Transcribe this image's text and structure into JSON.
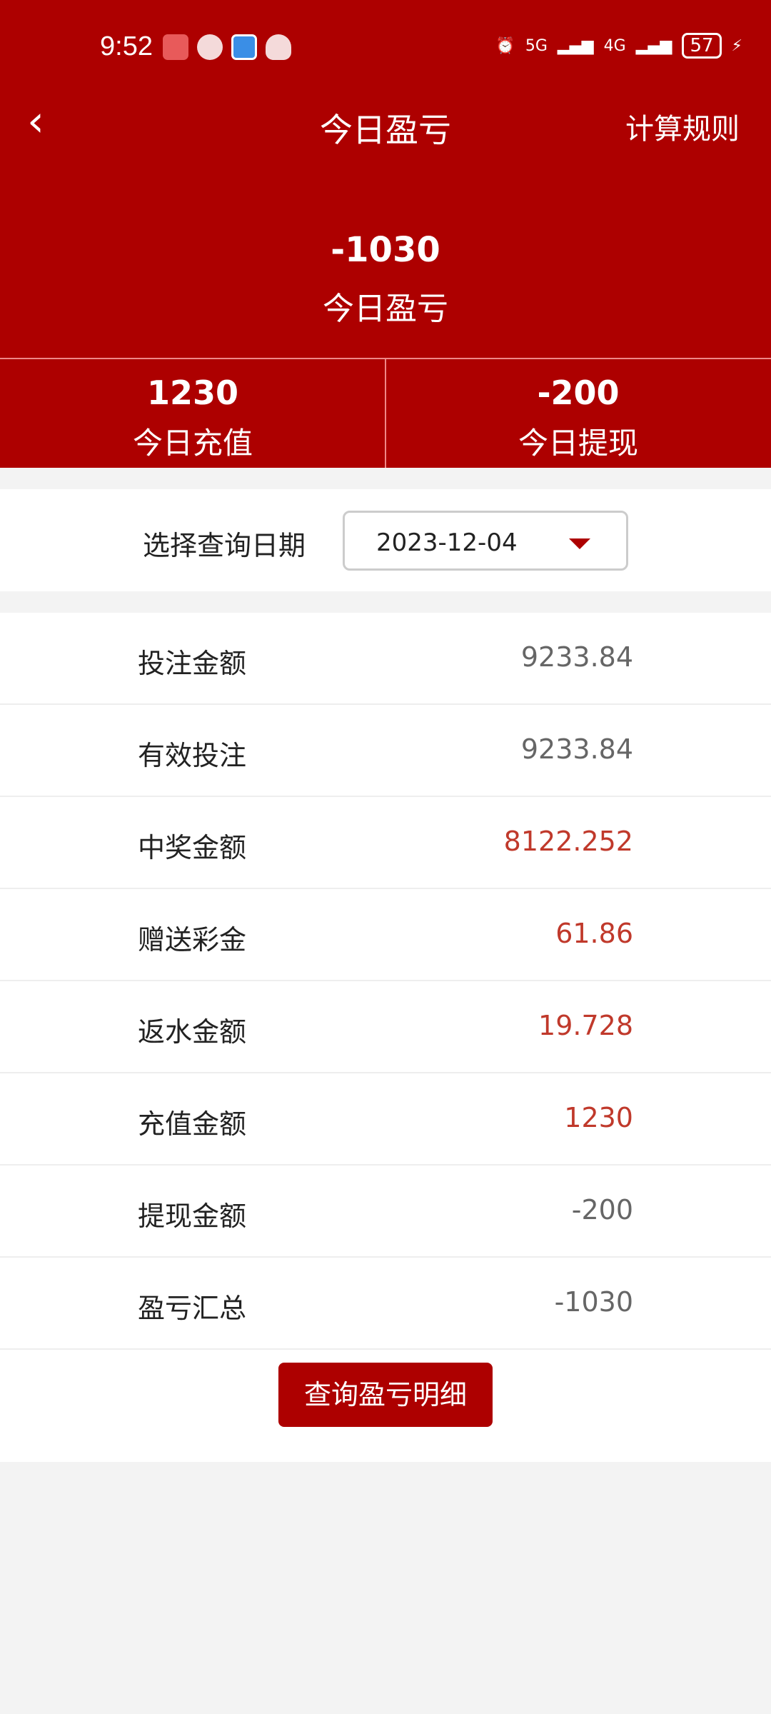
{
  "status_bar": {
    "time": "9:52",
    "battery": "57",
    "net1": "5G",
    "net2": "4G"
  },
  "nav": {
    "back_icon": "chevron-left",
    "title": "今日盈亏",
    "rules": "计算规则"
  },
  "summary": {
    "value": "-1030",
    "label": "今日盈亏"
  },
  "stats": [
    {
      "value": "1230",
      "label": "今日充值"
    },
    {
      "value": "-200",
      "label": "今日提现"
    }
  ],
  "date_filter": {
    "label": "选择查询日期",
    "value": "2023-12-04"
  },
  "colors": {
    "primary": "#ad0000",
    "highlight": "#c0392b"
  },
  "rows": [
    {
      "label": "投注金额",
      "value": "9233.84",
      "highlight": false
    },
    {
      "label": "有效投注",
      "value": "9233.84",
      "highlight": false
    },
    {
      "label": "中奖金额",
      "value": "8122.252",
      "highlight": true
    },
    {
      "label": "赠送彩金",
      "value": "61.86",
      "highlight": true
    },
    {
      "label": "返水金额",
      "value": "19.728",
      "highlight": true
    },
    {
      "label": "充值金额",
      "value": "1230",
      "highlight": true
    },
    {
      "label": "提现金额",
      "value": "-200",
      "highlight": false
    },
    {
      "label": "盈亏汇总",
      "value": "-1030",
      "highlight": false
    }
  ],
  "detail_button": "查询盈亏明细"
}
